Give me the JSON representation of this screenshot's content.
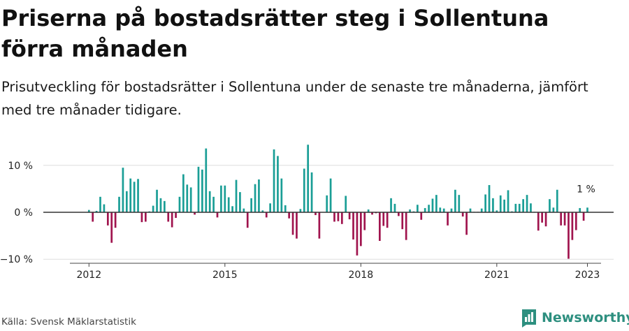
{
  "title": "Priserna på bostadsrätter steg i Sollentuna förra månaden",
  "subtitle": "Prisutveckling för bostadsrätter i Sollentuna under de senaste tre månaderna, jämfört med tre månader tidigare.",
  "source": "Källa: Svensk Mäklarstatistik",
  "brand": "Newsworthy",
  "colors": {
    "positive": "#1a9e96",
    "negative": "#a0144e",
    "brand": "#2d8f7f",
    "grid": "#dddddd",
    "zero_line": "#333333"
  },
  "chart_data": {
    "type": "bar",
    "start": "2012-01",
    "frequency": "monthly",
    "unit": "%",
    "ylim": [
      -10.5,
      14.5
    ],
    "y_ticks": [
      10,
      0,
      -10
    ],
    "y_tick_labels": [
      "10 %",
      "0 %",
      "−10 %"
    ],
    "x_ticks": [
      2012,
      2015,
      2018,
      2021,
      2023
    ],
    "x_tick_labels": [
      "2012",
      "2015",
      "2018",
      "2021",
      "2023"
    ],
    "last_value_label": "1 %",
    "values": [
      0.5,
      -2.0,
      0.3,
      3.3,
      1.7,
      -2.8,
      -6.5,
      -3.3,
      3.3,
      9.5,
      4.5,
      7.2,
      6.5,
      7.1,
      -2.1,
      -2.0,
      0.2,
      1.4,
      4.8,
      3.0,
      2.4,
      -2.0,
      -3.2,
      -1.2,
      3.3,
      8.1,
      5.9,
      5.3,
      -0.5,
      9.7,
      9.1,
      13.6,
      4.5,
      3.3,
      -1.1,
      5.7,
      5.7,
      3.2,
      1.3,
      6.9,
      4.3,
      0.8,
      -3.3,
      3.0,
      6.0,
      7.0,
      0.4,
      -1.1,
      1.9,
      13.4,
      12.0,
      7.2,
      1.5,
      -1.3,
      -4.8,
      -5.6,
      0.7,
      9.3,
      14.4,
      8.5,
      -0.6,
      -5.6,
      0.0,
      3.6,
      7.2,
      -2.0,
      -1.9,
      -2.5,
      3.5,
      -1.5,
      -5.8,
      -9.2,
      -7.2,
      -3.8,
      0.6,
      -0.5,
      -0.2,
      -6.1,
      -2.9,
      -3.3,
      3.0,
      1.8,
      -0.8,
      -3.6,
      -5.9,
      0.6,
      0.2,
      1.6,
      -1.6,
      0.9,
      1.6,
      2.9,
      3.7,
      1.0,
      0.8,
      -2.8,
      0.8,
      4.8,
      3.7,
      -0.9,
      -4.8,
      0.8,
      0.1,
      0.1,
      0.8,
      3.8,
      5.8,
      3.0,
      0.4,
      3.6,
      2.7,
      4.7,
      0.2,
      1.8,
      1.8,
      2.8,
      3.7,
      1.9,
      0.1,
      -3.9,
      -2.2,
      -3.0,
      2.8,
      1.0,
      4.8,
      -2.8,
      -2.8,
      -9.9,
      -5.9,
      -3.8,
      0.9,
      -1.8,
      1.0
    ]
  }
}
